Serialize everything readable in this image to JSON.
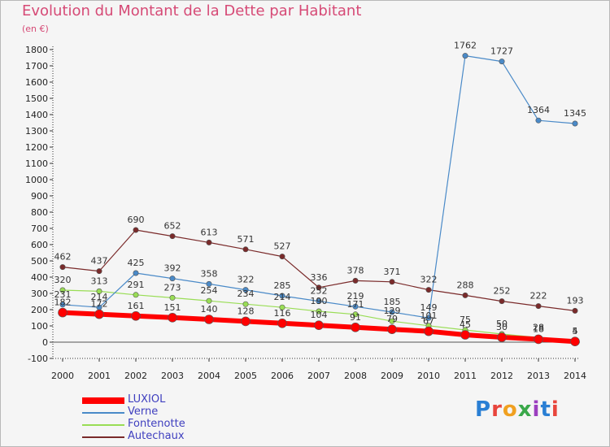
{
  "chart_data": {
    "type": "line",
    "title": "Evolution du Montant de la Dette par Habitant",
    "unit": "(en €)",
    "ylim": [
      -100,
      1800
    ],
    "y_ticks": [
      -100,
      0,
      100,
      200,
      300,
      400,
      500,
      600,
      700,
      800,
      900,
      1000,
      1100,
      1200,
      1300,
      1400,
      1500,
      1600,
      1700,
      1800
    ],
    "x": [
      "2000",
      "2001",
      "2002",
      "2003",
      "2004",
      "2005",
      "2006",
      "2007",
      "2008",
      "2009",
      "2010",
      "2011",
      "2012",
      "2013",
      "2014"
    ],
    "grid": false,
    "legend_position": "bottom-left",
    "series": [
      {
        "name": "LUXIOL",
        "color": "#ff0000",
        "values": [
          182,
          172,
          161,
          151,
          140,
          128,
          116,
          104,
          91,
          79,
          67,
          45,
          30,
          18,
          4
        ]
      },
      {
        "name": "Verne",
        "color": "#4a8ac8",
        "values": [
          231,
          214,
          425,
          392,
          358,
          322,
          285,
          252,
          219,
          185,
          149,
          1762,
          1727,
          1364,
          1345
        ]
      },
      {
        "name": "Fontenotte",
        "color": "#99dd55",
        "values": [
          320,
          313,
          291,
          273,
          254,
          234,
          214,
          190,
          171,
          129,
          101,
          75,
          50,
          28,
          5
        ]
      },
      {
        "name": "Autechaux",
        "color": "#7a2a2a",
        "values": [
          462,
          437,
          690,
          652,
          613,
          571,
          527,
          336,
          378,
          371,
          322,
          288,
          252,
          222,
          193
        ]
      }
    ]
  },
  "logo": {
    "text": "Proxiti"
  }
}
